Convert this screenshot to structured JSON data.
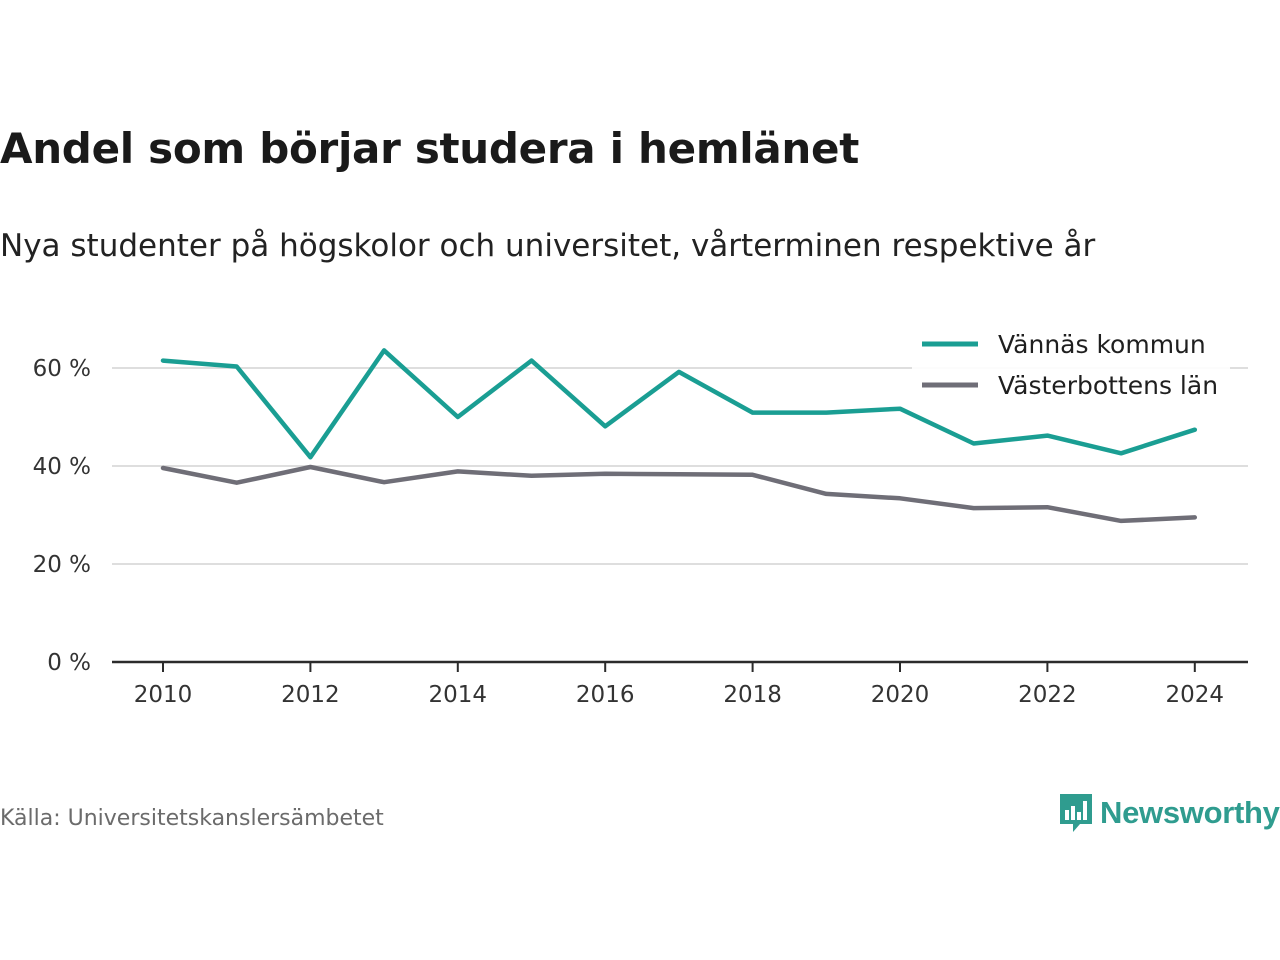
{
  "title": "Andel som börjar studera i hemlänet",
  "subtitle": "Nya studenter på högskolor och universitet, vårterminen respektive år",
  "source": "Källa: Universitetskanslersämbetet",
  "brand": {
    "name": "Newsworthy",
    "icon": "newsworthy-logo-icon",
    "color": "#2f9c8f"
  },
  "chart_data": {
    "type": "line",
    "title": "Andel som börjar studera i hemlänet",
    "subtitle": "Nya studenter på högskolor och universitet, vårterminen respektive år",
    "x": [
      2010,
      2011,
      2012,
      2013,
      2014,
      2015,
      2016,
      2017,
      2018,
      2019,
      2020,
      2021,
      2022,
      2023,
      2024
    ],
    "x_ticks": [
      2010,
      2012,
      2014,
      2016,
      2018,
      2020,
      2022,
      2024
    ],
    "y_ticks": [
      0,
      20,
      40,
      60
    ],
    "y_tick_labels": [
      "0 %",
      "20 %",
      "40 %",
      "60 %"
    ],
    "ylim": [
      0,
      70
    ],
    "grid": "horizontal",
    "legend_position": "top-right",
    "series": [
      {
        "name": "Vännäs kommun",
        "color": "#1a9e93",
        "values": [
          61.5,
          60.3,
          41.8,
          63.6,
          50.0,
          61.5,
          48.1,
          59.2,
          50.9,
          50.9,
          51.7,
          44.6,
          46.2,
          42.6,
          47.4
        ]
      },
      {
        "name": "Västerbottens län",
        "color": "#6f6e77",
        "values": [
          39.6,
          36.6,
          39.8,
          36.7,
          38.9,
          38.0,
          38.4,
          38.3,
          38.2,
          34.3,
          33.4,
          31.4,
          31.6,
          28.8,
          29.5
        ]
      }
    ]
  }
}
